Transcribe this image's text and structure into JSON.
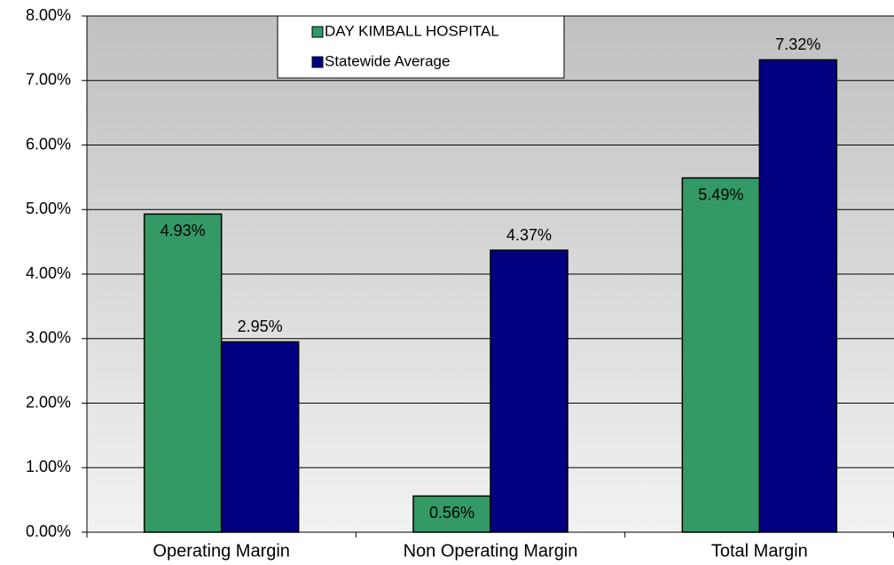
{
  "chart_data": {
    "type": "bar",
    "categories": [
      "Operating Margin",
      "Non Operating Margin",
      "Total Margin"
    ],
    "series": [
      {
        "name": "DAY KIMBALL HOSPITAL",
        "color": "#339966",
        "values": [
          4.93,
          0.56,
          5.49
        ],
        "value_labels": [
          "4.93%",
          "0.56%",
          "5.49%"
        ]
      },
      {
        "name": "Statewide Average",
        "color": "#000080",
        "values": [
          2.95,
          4.37,
          7.32
        ],
        "value_labels": [
          "2.95%",
          "4.37%",
          "7.32%"
        ]
      }
    ],
    "ylim": [
      0,
      8
    ],
    "yticks": [
      {
        "value": 0,
        "label": "0.00%"
      },
      {
        "value": 1,
        "label": "1.00%"
      },
      {
        "value": 2,
        "label": "2.00%"
      },
      {
        "value": 3,
        "label": "3.00%"
      },
      {
        "value": 4,
        "label": "4.00%"
      },
      {
        "value": 5,
        "label": "5.00%"
      },
      {
        "value": 6,
        "label": "6.00%"
      },
      {
        "value": 7,
        "label": "7.00%"
      },
      {
        "value": 8,
        "label": "8.00%"
      }
    ],
    "grid": true,
    "legend": "top"
  }
}
